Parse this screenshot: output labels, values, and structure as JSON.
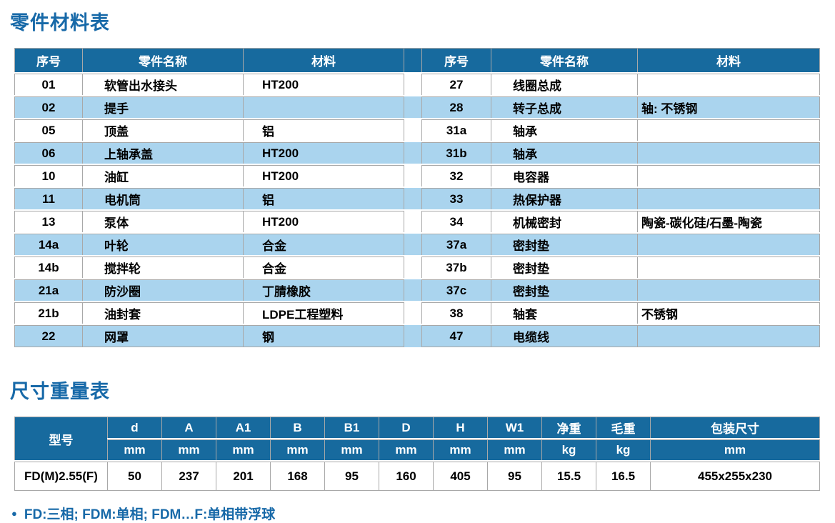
{
  "parts_table": {
    "title": "零件材料表",
    "columns": {
      "no": "序号",
      "name": "零件名称",
      "material": "材料"
    },
    "left_rows": [
      {
        "no": "01",
        "name": "软管出水接头",
        "material": "HT200"
      },
      {
        "no": "02",
        "name": "提手",
        "material": ""
      },
      {
        "no": "05",
        "name": "顶盖",
        "material": "铝"
      },
      {
        "no": "06",
        "name": "上轴承盖",
        "material": "HT200"
      },
      {
        "no": "10",
        "name": "油缸",
        "material": "HT200"
      },
      {
        "no": "11",
        "name": "电机筒",
        "material": "铝"
      },
      {
        "no": "13",
        "name": "泵体",
        "material": "HT200"
      },
      {
        "no": "14a",
        "name": "叶轮",
        "material": "合金"
      },
      {
        "no": "14b",
        "name": "搅拌轮",
        "material": "合金"
      },
      {
        "no": "21a",
        "name": "防沙圈",
        "material": "丁腈橡胶"
      },
      {
        "no": "21b",
        "name": "油封套",
        "material": "LDPE工程塑料"
      },
      {
        "no": "22",
        "name": "网罩",
        "material": "钢"
      }
    ],
    "right_rows": [
      {
        "no": "27",
        "name": "线圈总成",
        "material": ""
      },
      {
        "no": "28",
        "name": "转子总成",
        "material": "轴: 不锈钢"
      },
      {
        "no": "31a",
        "name": "轴承",
        "material": ""
      },
      {
        "no": "31b",
        "name": "轴承",
        "material": ""
      },
      {
        "no": "32",
        "name": "电容器",
        "material": ""
      },
      {
        "no": "33",
        "name": "热保护器",
        "material": ""
      },
      {
        "no": "34",
        "name": "机械密封",
        "material": "陶瓷-碳化硅/石墨-陶瓷"
      },
      {
        "no": "37a",
        "name": "密封垫",
        "material": ""
      },
      {
        "no": "37b",
        "name": "密封垫",
        "material": ""
      },
      {
        "no": "37c",
        "name": "密封垫",
        "material": ""
      },
      {
        "no": "38",
        "name": "轴套",
        "material": "不锈钢"
      },
      {
        "no": "47",
        "name": "电缆线",
        "material": ""
      }
    ]
  },
  "dimensions_table": {
    "title": "尺寸重量表",
    "model_column": "型号",
    "columns": [
      {
        "label": "d",
        "unit": "mm"
      },
      {
        "label": "A",
        "unit": "mm"
      },
      {
        "label": "A1",
        "unit": "mm"
      },
      {
        "label": "B",
        "unit": "mm"
      },
      {
        "label": "B1",
        "unit": "mm"
      },
      {
        "label": "D",
        "unit": "mm"
      },
      {
        "label": "H",
        "unit": "mm"
      },
      {
        "label": "W1",
        "unit": "mm"
      },
      {
        "label": "净重",
        "unit": "kg"
      },
      {
        "label": "毛重",
        "unit": "kg"
      },
      {
        "label": "包装尺寸",
        "unit": "mm"
      }
    ],
    "rows": [
      {
        "model": "FD(M)2.55(F)",
        "values": [
          "50",
          "237",
          "201",
          "168",
          "95",
          "160",
          "405",
          "95",
          "15.5",
          "16.5",
          "455x255x230"
        ]
      }
    ]
  },
  "footnote": {
    "bullet": "●",
    "text": "FD:三相; FDM:单相; FDM…F:单相带浮球"
  },
  "colors": {
    "header_bg": "#176a9e",
    "row_alt_bg": "#aad4ee",
    "accent_text": "#1769a8",
    "grid_line": "#a8a8a8"
  }
}
